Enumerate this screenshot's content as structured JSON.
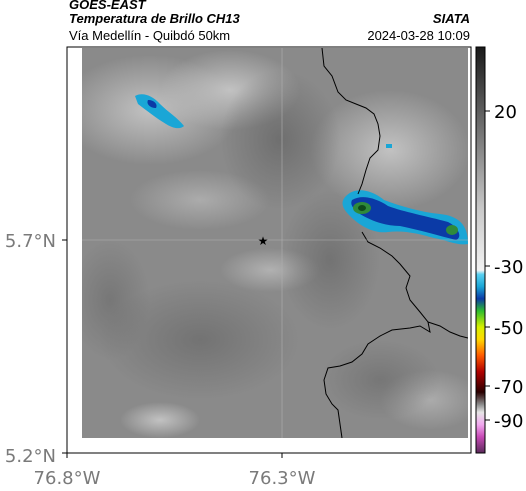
{
  "header": {
    "agency": "GOES-EAST",
    "product": "Temperatura de Brillo CH13",
    "location": "Vía Medellín - Quibdó 50km",
    "source": "SIATA",
    "datetime": "2024-03-28 10:09"
  },
  "axes": {
    "x_ticks": [
      "76.8°W",
      "76.3°W"
    ],
    "y_ticks": [
      "5.7°N",
      "5.2°N"
    ]
  },
  "colorbar": {
    "ticks": [
      "20",
      "-30",
      "-50",
      "-70",
      "-90"
    ]
  },
  "colors": {
    "cloud_cold": "#1b3fa0",
    "cloud_mid": "#1aa6d6",
    "cloud_core": "#2f8a3a",
    "border_line": "#000000"
  }
}
